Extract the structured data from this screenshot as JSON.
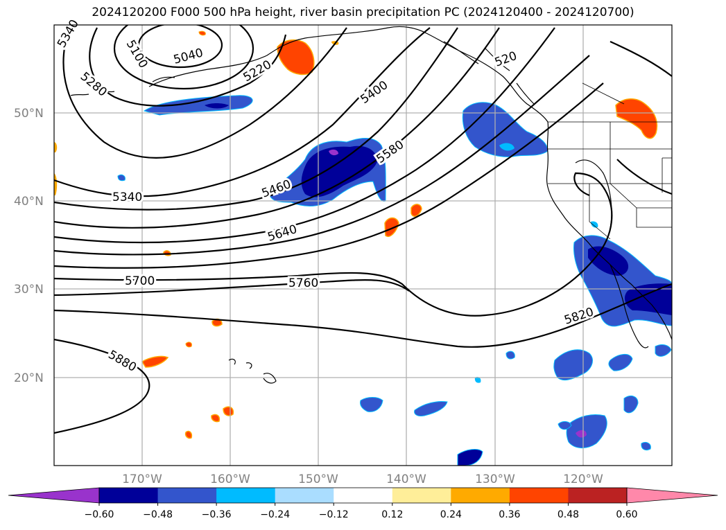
{
  "title": "2024120200 F000 500 hPa height, river basin precipitation PC (2024120400 - 2024120700)",
  "lat_labels": [
    "50°N",
    "40°N",
    "30°N",
    "20°N"
  ],
  "lon_labels": [
    "170°W",
    "160°W",
    "150°W",
    "140°W",
    "130°W",
    "120°W"
  ],
  "contour_labels": [
    "5340",
    "5100",
    "5040",
    "5280",
    "5220",
    "5400",
    "520",
    "5580",
    "5460",
    "5340",
    "5640",
    "5700",
    "5760",
    "5820",
    "5880"
  ],
  "colorbar": {
    "ticks": [
      "−0.60",
      "−0.48",
      "−0.36",
      "−0.24",
      "−0.12",
      "0.12",
      "0.24",
      "0.36",
      "0.48",
      "0.60"
    ],
    "colors": [
      "#9933cc",
      "#000099",
      "#3355cc",
      "#00bbff",
      "#aaddff",
      "#ffffff",
      "#ffee99",
      "#ffaa00",
      "#ff4400",
      "#bb2222",
      "#ff88aa"
    ]
  },
  "colors": {
    "neg_strong": "#000099",
    "neg_mid": "#3355cc",
    "neg_light": "#00bbff",
    "neg_pale": "#aaddff",
    "neg_extreme": "#9933cc",
    "pos_light": "#ffee99",
    "pos_mid": "#ffaa00",
    "pos_strong": "#ff4400"
  }
}
